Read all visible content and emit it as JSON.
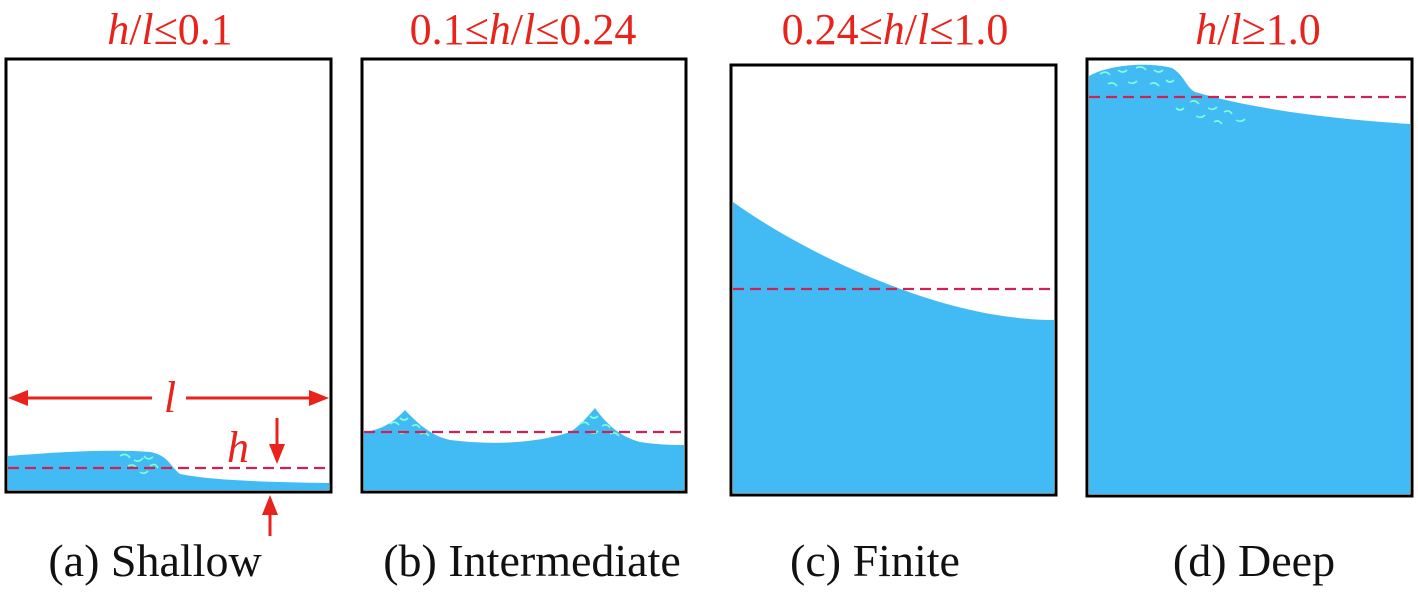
{
  "colors": {
    "water": "#42bbf5",
    "tank_border": "#000000",
    "still_level_line": "#cc2255",
    "annotation": "#e8231c",
    "spray": "#7fffd4"
  },
  "panels": [
    {
      "id": "a",
      "ratio_parts": [
        {
          "t": "h",
          "italic": true
        },
        {
          "t": "/",
          "italic": false
        },
        {
          "t": "l",
          "italic": true
        },
        {
          "t": "≤0.1",
          "italic": false
        }
      ],
      "caption": "(a) Shallow"
    },
    {
      "id": "b",
      "ratio_parts": [
        {
          "t": "0.1≤",
          "italic": false
        },
        {
          "t": "h",
          "italic": true
        },
        {
          "t": "/",
          "italic": false
        },
        {
          "t": "l",
          "italic": true
        },
        {
          "t": "≤0.24",
          "italic": false
        }
      ],
      "caption": "(b) Intermediate"
    },
    {
      "id": "c",
      "ratio_parts": [
        {
          "t": "0.24≤",
          "italic": false
        },
        {
          "t": "h",
          "italic": true
        },
        {
          "t": "/",
          "italic": false
        },
        {
          "t": "l",
          "italic": true
        },
        {
          "t": "≤1.0",
          "italic": false
        }
      ],
      "caption": "(c) Finite"
    },
    {
      "id": "d",
      "ratio_parts": [
        {
          "t": "h",
          "italic": true
        },
        {
          "t": "/",
          "italic": false
        },
        {
          "t": "l",
          "italic": true
        },
        {
          "t": "≥1.0",
          "italic": false
        }
      ],
      "caption": "(d) Deep"
    }
  ],
  "annotations": {
    "length_symbol": "l",
    "depth_symbol": "h"
  }
}
